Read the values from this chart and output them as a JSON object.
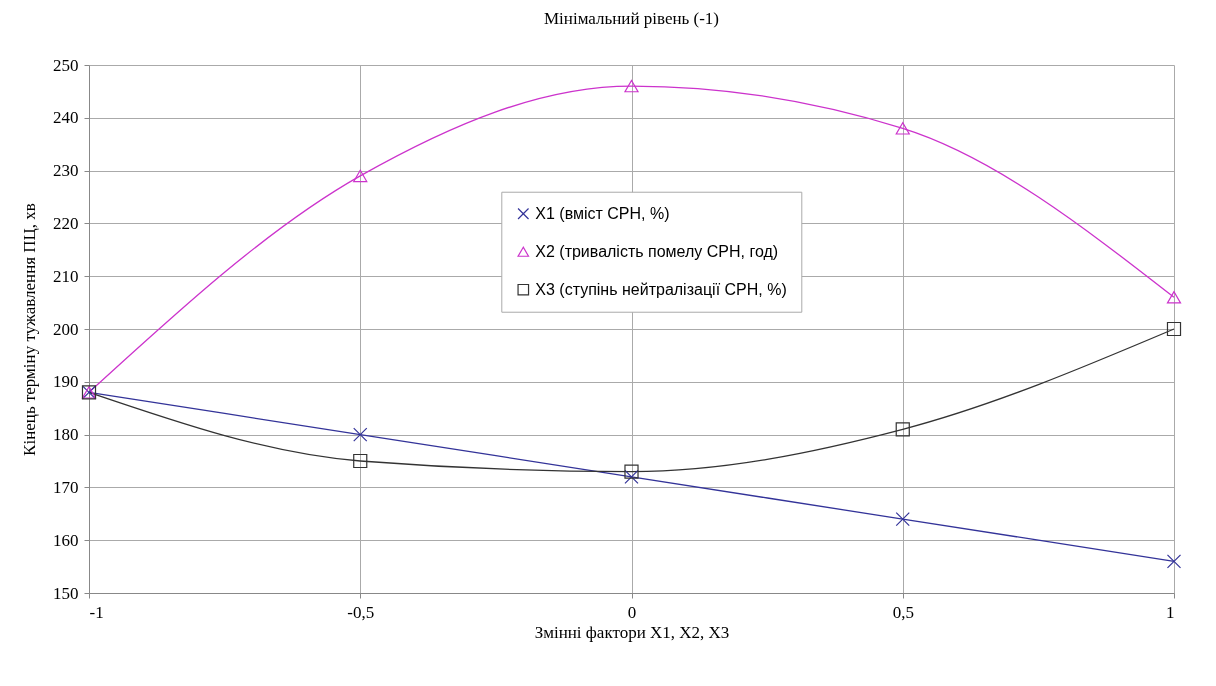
{
  "chart_data": {
    "type": "line",
    "title": "Мінімальний рівень (-1)",
    "xlabel": "Змінні фактори X1, X2, X3",
    "ylabel": "Кінець  терміну тужавлення ПЦ, хв",
    "x": [
      -1,
      -0.5,
      0,
      0.5,
      1
    ],
    "series": [
      {
        "name": "X1 (вміст CPH, %)",
        "color": "#333399",
        "marker": "cross",
        "values": [
          188,
          180,
          172,
          164,
          156
        ]
      },
      {
        "name": "X2 (тривалість помелу CPH, год)",
        "color": "#cc33cc",
        "marker": "triangle",
        "values": [
          188,
          229,
          246,
          238,
          206
        ]
      },
      {
        "name": "X3 (ступінь нейтралізації CPH, %)",
        "color": "#333333",
        "marker": "square",
        "values": [
          188,
          175,
          173,
          181,
          200
        ]
      }
    ],
    "xlim": [
      -1,
      1
    ],
    "xticks": [
      {
        "value": -1,
        "label": "-1"
      },
      {
        "value": -0.5,
        "label": "-0,5"
      },
      {
        "value": 0,
        "label": "0"
      },
      {
        "value": 0.5,
        "label": "0,5"
      },
      {
        "value": 1,
        "label": "1"
      }
    ],
    "ylim": [
      150,
      250
    ],
    "yticks": [
      150,
      160,
      170,
      180,
      190,
      200,
      210,
      220,
      230,
      240,
      250
    ],
    "grid": true,
    "legend": "center"
  }
}
